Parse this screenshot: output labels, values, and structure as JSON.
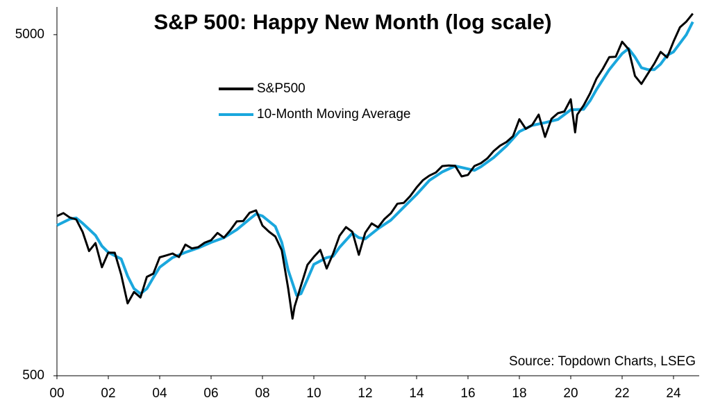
{
  "chart_data": {
    "type": "line",
    "title": "S&P 500: Happy New Month (log scale)",
    "annotation": "Source: Topdown Charts, LSEG",
    "log_scale": true,
    "xlim": [
      2000,
      2025
    ],
    "xticks": [
      {
        "value": 2000,
        "label": "00"
      },
      {
        "value": 2002,
        "label": "02"
      },
      {
        "value": 2004,
        "label": "04"
      },
      {
        "value": 2006,
        "label": "06"
      },
      {
        "value": 2008,
        "label": "08"
      },
      {
        "value": 2010,
        "label": "10"
      },
      {
        "value": 2012,
        "label": "12"
      },
      {
        "value": 2014,
        "label": "14"
      },
      {
        "value": 2016,
        "label": "16"
      },
      {
        "value": 2018,
        "label": "18"
      },
      {
        "value": 2020,
        "label": "20"
      },
      {
        "value": 2022,
        "label": "22"
      },
      {
        "value": 2024,
        "label": "24"
      }
    ],
    "ylim": [
      500,
      6000
    ],
    "yticks": [
      500,
      5000
    ],
    "legend": "upper-left",
    "series": [
      {
        "name": "S&P500",
        "color": "#000000",
        "x": [
          2000.0,
          2000.25,
          2000.5,
          2000.75,
          2001.0,
          2001.25,
          2001.5,
          2001.75,
          2002.0,
          2002.25,
          2002.5,
          2002.75,
          2003.0,
          2003.25,
          2003.5,
          2003.75,
          2004.0,
          2004.25,
          2004.5,
          2004.75,
          2005.0,
          2005.25,
          2005.5,
          2005.75,
          2006.0,
          2006.25,
          2006.5,
          2006.75,
          2007.0,
          2007.25,
          2007.5,
          2007.75,
          2008.0,
          2008.25,
          2008.5,
          2008.75,
          2009.0,
          2009.17,
          2009.25,
          2009.5,
          2009.75,
          2010.0,
          2010.25,
          2010.5,
          2010.75,
          2011.0,
          2011.25,
          2011.5,
          2011.75,
          2012.0,
          2012.25,
          2012.5,
          2012.75,
          2013.0,
          2013.25,
          2013.5,
          2013.75,
          2014.0,
          2014.25,
          2014.5,
          2014.75,
          2015.0,
          2015.25,
          2015.5,
          2015.75,
          2016.0,
          2016.25,
          2016.5,
          2016.75,
          2017.0,
          2017.25,
          2017.5,
          2017.75,
          2018.0,
          2018.25,
          2018.5,
          2018.75,
          2019.0,
          2019.25,
          2019.5,
          2019.75,
          2020.0,
          2020.17,
          2020.25,
          2020.5,
          2020.75,
          2021.0,
          2021.25,
          2021.5,
          2021.75,
          2022.0,
          2022.25,
          2022.5,
          2022.75,
          2023.0,
          2023.25,
          2023.5,
          2023.75,
          2024.0,
          2024.25,
          2024.5,
          2024.75
        ],
        "values": [
          1469,
          1499,
          1455,
          1436,
          1320,
          1160,
          1224,
          1040,
          1148,
          1147,
          990,
          815,
          880,
          848,
          975,
          996,
          1112,
          1126,
          1141,
          1114,
          1212,
          1181,
          1191,
          1228,
          1248,
          1311,
          1270,
          1336,
          1418,
          1421,
          1503,
          1527,
          1378,
          1323,
          1280,
          1166,
          903,
          735,
          798,
          919,
          1057,
          1115,
          1169,
          1031,
          1141,
          1286,
          1364,
          1321,
          1131,
          1312,
          1398,
          1362,
          1441,
          1498,
          1597,
          1606,
          1682,
          1782,
          1873,
          1931,
          1972,
          2059,
          2068,
          2063,
          1920,
          1940,
          2060,
          2099,
          2168,
          2279,
          2363,
          2423,
          2519,
          2824,
          2648,
          2718,
          2914,
          2507,
          2834,
          2942,
          2977,
          3231,
          2585,
          2912,
          3100,
          3363,
          3714,
          3973,
          4298,
          4308,
          4766,
          4530,
          3785,
          3586,
          3840,
          4109,
          4450,
          4288,
          4770,
          5254,
          5460,
          5762
        ]
      },
      {
        "name": "10-Month Moving Average",
        "color": "#1aa7dd",
        "x": [
          2000.0,
          2000.5,
          2000.75,
          2001.0,
          2001.5,
          2001.75,
          2002.0,
          2002.5,
          2002.75,
          2003.0,
          2003.25,
          2003.5,
          2003.75,
          2004.0,
          2004.5,
          2005.0,
          2005.5,
          2006.0,
          2006.5,
          2007.0,
          2007.5,
          2007.75,
          2008.0,
          2008.5,
          2008.75,
          2009.0,
          2009.33,
          2009.5,
          2009.75,
          2010.0,
          2010.5,
          2010.75,
          2011.0,
          2011.5,
          2011.75,
          2012.0,
          2012.5,
          2013.0,
          2013.5,
          2014.0,
          2014.5,
          2015.0,
          2015.5,
          2016.0,
          2016.25,
          2016.5,
          2017.0,
          2017.5,
          2018.0,
          2018.5,
          2019.0,
          2019.5,
          2020.0,
          2020.5,
          2020.75,
          2021.0,
          2021.5,
          2022.0,
          2022.25,
          2022.5,
          2022.75,
          2023.0,
          2023.25,
          2023.5,
          2023.75,
          2024.0,
          2024.5,
          2024.75
        ],
        "values": [
          1380,
          1440,
          1450,
          1400,
          1290,
          1200,
          1150,
          1100,
          980,
          900,
          870,
          900,
          970,
          1040,
          1110,
          1150,
          1185,
          1230,
          1270,
          1340,
          1440,
          1490,
          1470,
          1370,
          1230,
          1020,
          860,
          870,
          960,
          1060,
          1110,
          1120,
          1190,
          1310,
          1270,
          1260,
          1350,
          1430,
          1560,
          1700,
          1870,
          1980,
          2060,
          2020,
          2000,
          2050,
          2180,
          2360,
          2600,
          2710,
          2760,
          2820,
          3010,
          3020,
          3200,
          3450,
          3950,
          4400,
          4550,
          4300,
          4000,
          3950,
          3950,
          4100,
          4350,
          4450,
          5000,
          5450
        ]
      }
    ]
  }
}
